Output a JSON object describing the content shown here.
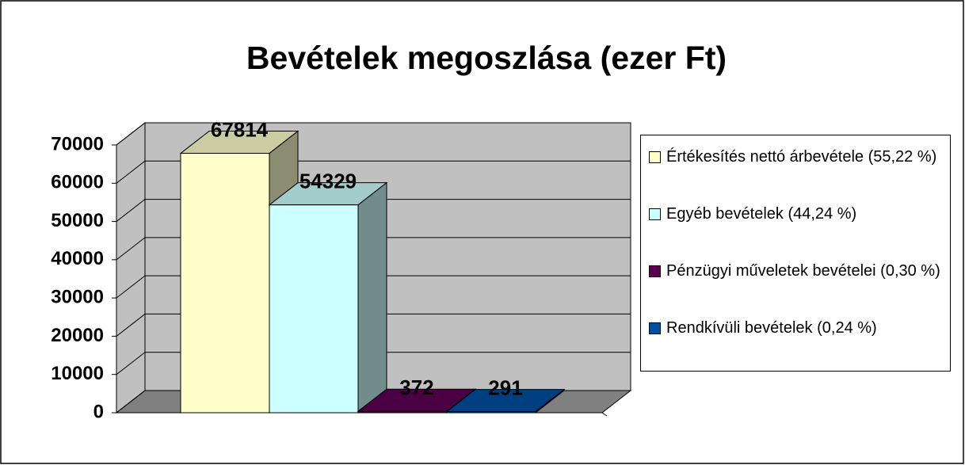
{
  "chart_data": {
    "type": "bar3d",
    "title": "Bevételek megoszlása (ezer Ft)",
    "series": [
      {
        "name": "Értékesítés nettó árbevétele (55,22 %)",
        "color": "#ffffcc",
        "values": [
          67814
        ]
      },
      {
        "name": "Egyéb bevételek (44,24 %)",
        "color": "#ccffff",
        "values": [
          54329
        ]
      },
      {
        "name": "Pénzügyi műveletek bevételei (0,30 %)",
        "color": "#5c0052",
        "values": [
          372
        ]
      },
      {
        "name": "Rendkívüli bevételek (0,24 %)",
        "color": "#0050a0",
        "values": [
          291
        ]
      }
    ],
    "ylim": [
      0,
      70000
    ],
    "yticks": [
      0,
      10000,
      20000,
      30000,
      40000,
      50000,
      60000,
      70000
    ],
    "grid": true,
    "legend": "right"
  }
}
